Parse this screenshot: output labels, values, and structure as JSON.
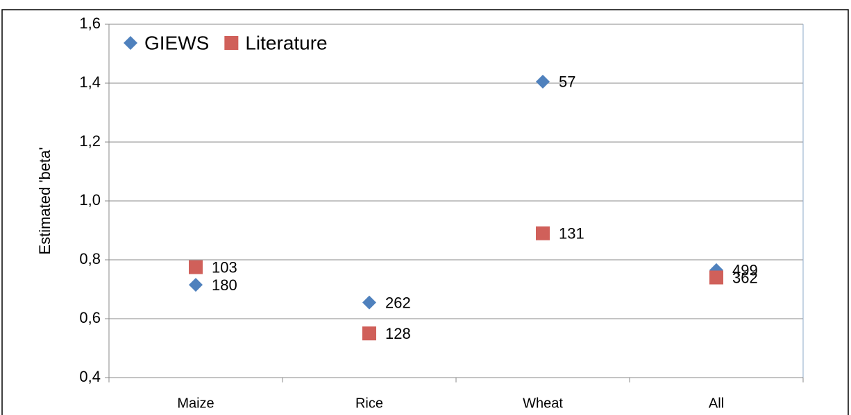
{
  "chart_data": {
    "type": "scatter",
    "ylabel": "Estimated 'beta'",
    "categories": [
      "Maize",
      "Rice",
      "Wheat",
      "All"
    ],
    "series": [
      {
        "name": "GIEWS",
        "color": "#4f81bd",
        "marker": "diamond",
        "values": [
          0.715,
          0.655,
          1.405,
          0.765
        ],
        "counts": [
          180,
          262,
          57,
          499
        ]
      },
      {
        "name": "Literature",
        "color": "#d0605a",
        "marker": "square",
        "values": [
          0.775,
          0.55,
          0.89,
          0.74
        ],
        "counts": [
          103,
          128,
          131,
          362
        ]
      }
    ],
    "ylim": [
      0.4,
      1.6
    ],
    "yticks": [
      {
        "value": 0.4,
        "label": "0,4"
      },
      {
        "value": 0.6,
        "label": "0,6"
      },
      {
        "value": 0.8,
        "label": "0,8"
      },
      {
        "value": 1.0,
        "label": "1,0"
      },
      {
        "value": 1.2,
        "label": "1,2"
      },
      {
        "value": 1.4,
        "label": "1,4"
      },
      {
        "value": 1.6,
        "label": "1,6"
      }
    ],
    "grid": true,
    "legend": "top-left"
  }
}
